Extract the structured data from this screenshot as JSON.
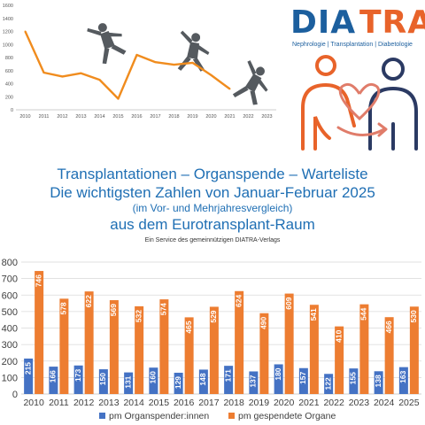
{
  "logo": {
    "word_a": "DIA",
    "word_b": "TRA",
    "tagline": "Nephrologie  |  Transplantation  |  Diabetologie",
    "color_blue": "#1c5f9e",
    "color_orange": "#e8632a"
  },
  "headline": {
    "line1": "Transplantationen – Organspende – Warteliste",
    "line2": "Die wichtigsten Zahlen von Januar-Februar 2025",
    "line3": "(im Vor- und Mehrjahresvergleich)",
    "line4": "aus dem Eurotransplant-Raum",
    "service": "Ein Service des gemeinnützigen DIATRA-Verlags"
  },
  "chart_data": [
    {
      "type": "line",
      "x": [
        "2010",
        "2011",
        "2012",
        "2013",
        "2014",
        "2015",
        "2016",
        "2017",
        "2018",
        "2019",
        "2020",
        "2021",
        "2022",
        "2023"
      ],
      "values": [
        1200,
        570,
        510,
        560,
        460,
        170,
        840,
        730,
        690,
        720,
        530,
        320,
        null,
        null
      ],
      "ylim": [
        0,
        1600
      ],
      "yticks": [
        0,
        200,
        400,
        600,
        800,
        1000,
        1200,
        1400,
        1600
      ],
      "color": "#f08c1e",
      "grid": false
    },
    {
      "type": "bar",
      "categories": [
        "2010",
        "2011",
        "2012",
        "2013",
        "2014",
        "2015",
        "2016",
        "2017",
        "2018",
        "2019",
        "2020",
        "2021",
        "2022",
        "2023",
        "2024",
        "2025"
      ],
      "series": [
        {
          "name": "pm Organspender:innen",
          "color": "#4472c4",
          "values": [
            215,
            166,
            173,
            150,
            131,
            160,
            129,
            148,
            171,
            137,
            180,
            157,
            122,
            155,
            138,
            163
          ]
        },
        {
          "name": "pm gespendete Organe",
          "color": "#ed7d31",
          "values": [
            746,
            578,
            622,
            569,
            532,
            574,
            465,
            529,
            624,
            490,
            609,
            541,
            410,
            544,
            466,
            530
          ]
        }
      ],
      "ylim": [
        0,
        800
      ],
      "yticks": [
        0,
        100,
        200,
        300,
        400,
        500,
        600,
        700,
        800
      ],
      "grid": true,
      "legend": "bottom"
    }
  ]
}
